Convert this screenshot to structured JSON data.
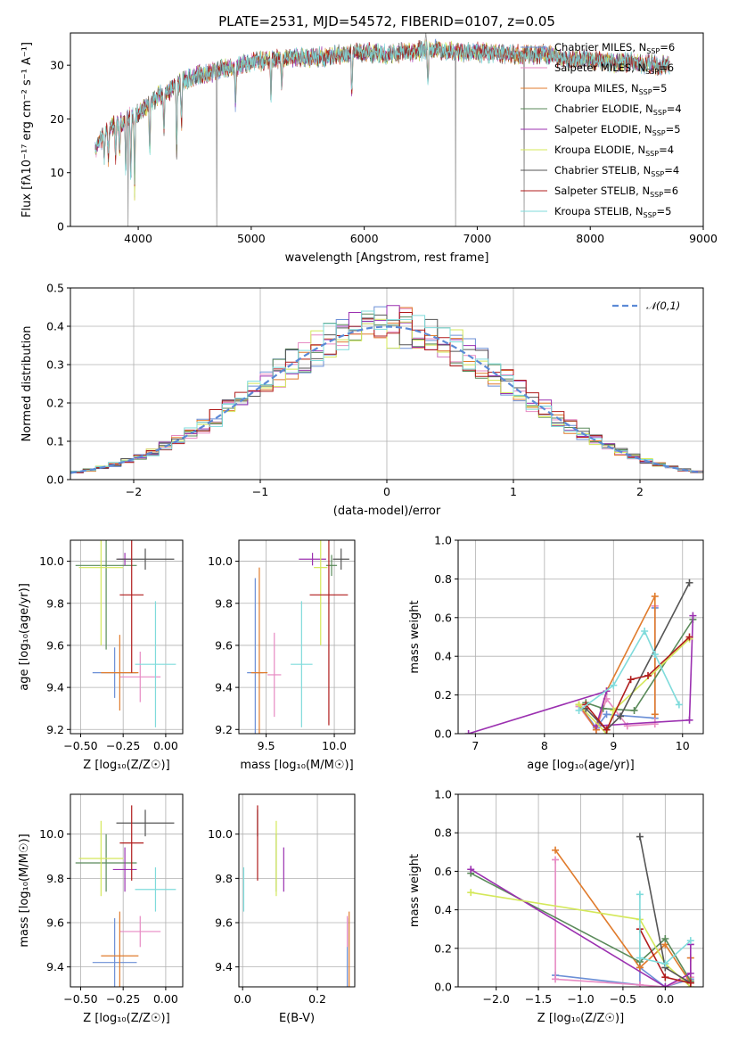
{
  "figure_title": "PLATE=2531, MJD=54572, FIBERID=0107, z=0.05",
  "models": [
    {
      "name": "Chabrier MILES",
      "nssp": "6",
      "color": "#6b8fd6"
    },
    {
      "name": "Salpeter MILES",
      "nssp": "6",
      "color": "#e78ac3"
    },
    {
      "name": "Kroupa MILES",
      "nssp": "5",
      "color": "#e07b2c"
    },
    {
      "name": "Chabrier ELODIE",
      "nssp": "4",
      "color": "#5a8a5a"
    },
    {
      "name": "Salpeter ELODIE",
      "nssp": "5",
      "color": "#9b30b0"
    },
    {
      "name": "Kroupa ELODIE",
      "nssp": "4",
      "color": "#d4e85a"
    },
    {
      "name": "Chabrier STELIB",
      "nssp": "4",
      "color": "#555555"
    },
    {
      "name": "Salpeter STELIB",
      "nssp": "6",
      "color": "#b01c1c"
    },
    {
      "name": "Kroupa STELIB",
      "nssp": "5",
      "color": "#7fdbdb"
    }
  ],
  "chart_data": [
    {
      "id": "spectrum",
      "type": "line",
      "xlabel": "wavelength [Angstrom, rest frame]",
      "ylabel": "Flux [fλ10⁻¹⁷ erg cm⁻² s⁻¹ A⁻¹]",
      "xlim": [
        3400,
        9000
      ],
      "ylim": [
        0,
        36
      ],
      "xticks": [
        4000,
        5000,
        6000,
        7000,
        8000,
        9000
      ],
      "yticks": [
        0,
        10,
        20,
        30
      ],
      "legend": "upper right",
      "continuum": {
        "x": [
          3620,
          3700,
          3800,
          3900,
          4000,
          4100,
          4200,
          4300,
          4400,
          4500,
          4600,
          4800,
          5000,
          5200,
          5400,
          5600,
          5800,
          6000,
          6200,
          6400,
          6600,
          6800,
          7000,
          7200,
          7400,
          7600,
          7800,
          8000,
          8200,
          8400,
          8600,
          8700
        ],
        "y": [
          14.5,
          17,
          19,
          20,
          21,
          23,
          24.5,
          25.5,
          27,
          28,
          28.5,
          29.5,
          30.5,
          31,
          31.5,
          31.5,
          32,
          32.5,
          32,
          32.5,
          33,
          32.5,
          32.5,
          32,
          32,
          32,
          31,
          31,
          30.5,
          30.5,
          30,
          30
        ]
      },
      "absorption_lines": [
        {
          "x": 3700,
          "y": 12
        },
        {
          "x": 3735,
          "y": 13
        },
        {
          "x": 3800,
          "y": 12.5
        },
        {
          "x": 3835,
          "y": 14
        },
        {
          "x": 3890,
          "y": 10
        },
        {
          "x": 3934,
          "y": 7
        },
        {
          "x": 3968,
          "y": 7
        },
        {
          "x": 4102,
          "y": 13
        },
        {
          "x": 4227,
          "y": 17
        },
        {
          "x": 4340,
          "y": 14
        },
        {
          "x": 4383,
          "y": 18
        },
        {
          "x": 4861,
          "y": 22
        },
        {
          "x": 5175,
          "y": 23
        },
        {
          "x": 5270,
          "y": 25
        },
        {
          "x": 5890,
          "y": 25
        },
        {
          "x": 6563,
          "y": 27
        }
      ],
      "outlier_spikes": [
        {
          "x": 3905,
          "x2": 3915,
          "y": 0
        },
        {
          "x": 4690,
          "x2": 4700,
          "y": 0
        },
        {
          "x": 6805,
          "x2": 6812,
          "y": 0
        },
        {
          "x": 7410,
          "x2": 7420,
          "y": 0
        },
        {
          "x": 6530,
          "x2": 6560,
          "y": 36
        }
      ]
    },
    {
      "id": "residual-histogram",
      "type": "line",
      "xlabel": "(data-model)/error",
      "ylabel": "Normed distribution",
      "xlim": [
        -2.5,
        2.5
      ],
      "ylim": [
        0,
        0.5
      ],
      "xticks": [
        -2,
        -1,
        0,
        1,
        2
      ],
      "yticks": [
        0.0,
        0.1,
        0.2,
        0.3,
        0.4,
        0.5
      ],
      "legend": "upper right",
      "reference": {
        "name": "𝒩(0,1)",
        "mean": 0,
        "sigma": 1
      },
      "bin_width": 0.1
    },
    {
      "id": "age-vs-Z",
      "type": "scatter",
      "xlabel": "Z [log₁₀(Z/Z☉)]",
      "ylabel": "age  [log₁₀(age/yr)]",
      "xlim": [
        -0.56,
        0.1
      ],
      "ylim": [
        9.18,
        10.1
      ],
      "xticks": [
        -0.5,
        -0.25,
        0.0
      ],
      "yticks": [
        9.2,
        9.4,
        9.6,
        9.8,
        10.0
      ],
      "points": [
        {
          "model": 0,
          "x": -0.3,
          "xerr": 0.13,
          "y": 9.47,
          "yerr": 0.12
        },
        {
          "model": 1,
          "x": -0.15,
          "xerr": 0.12,
          "y": 9.45,
          "yerr": 0.12
        },
        {
          "model": 2,
          "x": -0.27,
          "xerr": 0.11,
          "y": 9.47,
          "yerr": 0.18
        },
        {
          "model": 3,
          "x": -0.35,
          "xerr": 0.18,
          "y": 9.98,
          "yerr": 0.4
        },
        {
          "model": 4,
          "x": -0.24,
          "xerr": 0.04,
          "y": 10.01,
          "yerr": 0.03
        },
        {
          "model": 5,
          "x": -0.38,
          "xerr": 0.13,
          "y": 9.97,
          "yerr": 0.37
        },
        {
          "model": 6,
          "x": -0.12,
          "xerr": 0.17,
          "y": 10.01,
          "yerr": 0.05
        },
        {
          "model": 7,
          "x": -0.2,
          "xerr": 0.07,
          "y": 9.84,
          "yerr": 0.37
        },
        {
          "model": 8,
          "x": -0.06,
          "xerr": 0.12,
          "y": 9.51,
          "yerr": 0.3
        }
      ]
    },
    {
      "id": "age-vs-mass",
      "type": "scatter",
      "xlabel": "mass [log₁₀(M/M☉)]",
      "ylabel": "",
      "xlim": [
        9.3,
        10.15
      ],
      "ylim": [
        9.18,
        10.1
      ],
      "xticks": [
        9.5,
        10.0
      ],
      "yticks": [
        9.2,
        9.4,
        9.6,
        9.8,
        10.0
      ],
      "points": [
        {
          "model": 0,
          "x": 9.42,
          "xerr": 0.06,
          "y": 9.47,
          "yerr": 0.45
        },
        {
          "model": 1,
          "x": 9.56,
          "xerr": 0.05,
          "y": 9.46,
          "yerr": 0.2
        },
        {
          "model": 2,
          "x": 9.45,
          "xerr": 0.06,
          "y": 9.47,
          "yerr": 0.5
        },
        {
          "model": 3,
          "x": 9.98,
          "xerr": 0.04,
          "y": 9.98,
          "yerr": 0.05
        },
        {
          "model": 4,
          "x": 9.84,
          "xerr": 0.1,
          "y": 10.01,
          "yerr": 0.03
        },
        {
          "model": 5,
          "x": 9.9,
          "xerr": 0.05,
          "y": 9.97,
          "yerr": 0.37
        },
        {
          "model": 6,
          "x": 10.05,
          "xerr": 0.06,
          "y": 10.01,
          "yerr": 0.05
        },
        {
          "model": 7,
          "x": 9.96,
          "xerr": 0.14,
          "y": 9.84,
          "yerr": 0.62
        },
        {
          "model": 8,
          "x": 9.76,
          "xerr": 0.08,
          "y": 9.51,
          "yerr": 0.3
        }
      ]
    },
    {
      "id": "massweight-vs-age",
      "type": "line",
      "xlabel": "age  [log₁₀(age/yr)]",
      "ylabel": "mass weight",
      "xlim": [
        6.75,
        10.3
      ],
      "ylim": [
        0,
        1.0
      ],
      "xticks": [
        7,
        8,
        9,
        10
      ],
      "yticks": [
        0.0,
        0.2,
        0.4,
        0.6,
        0.8,
        1.0
      ],
      "series": [
        {
          "model": 0,
          "x": [
            8.5,
            8.75,
            8.9,
            9.6,
            9.6
          ],
          "y": [
            0.15,
            0.03,
            0.1,
            0.08,
            0.65
          ]
        },
        {
          "model": 1,
          "x": [
            8.5,
            8.75,
            8.9,
            9.2,
            9.6,
            9.6
          ],
          "y": [
            0.14,
            0.02,
            0.18,
            0.04,
            0.05,
            0.66
          ]
        },
        {
          "model": 2,
          "x": [
            8.5,
            8.75,
            8.9,
            9.6,
            9.6
          ],
          "y": [
            0.15,
            0.02,
            0.22,
            0.71,
            0.1
          ]
        },
        {
          "model": 3,
          "x": [
            8.6,
            8.85,
            9.3,
            10.15
          ],
          "y": [
            0.16,
            0.13,
            0.12,
            0.59
          ]
        },
        {
          "model": 4,
          "x": [
            6.9,
            8.9,
            8.75,
            10.1,
            10.15
          ],
          "y": [
            0.0,
            0.22,
            0.04,
            0.07,
            0.61
          ]
        },
        {
          "model": 5,
          "x": [
            8.5,
            8.9,
            9.0,
            10.1
          ],
          "y": [
            0.15,
            0.0,
            0.12,
            0.49
          ]
        },
        {
          "model": 6,
          "x": [
            8.6,
            8.9,
            9.1,
            10.1
          ],
          "y": [
            0.13,
            0.02,
            0.09,
            0.78
          ]
        },
        {
          "model": 7,
          "x": [
            8.6,
            8.9,
            9.25,
            9.5,
            10.1
          ],
          "y": [
            0.15,
            0.02,
            0.28,
            0.3,
            0.5
          ]
        },
        {
          "model": 8,
          "x": [
            8.5,
            9.0,
            9.45,
            9.6,
            9.95
          ],
          "y": [
            0.12,
            0.25,
            0.53,
            0.41,
            0.15
          ]
        }
      ]
    },
    {
      "id": "mass-vs-Z",
      "type": "scatter",
      "xlabel": "Z [log₁₀(Z/Z☉)]",
      "ylabel": "mass [log₁₀(M/M☉)]",
      "xlim": [
        -0.56,
        0.1
      ],
      "ylim": [
        9.31,
        10.18
      ],
      "xticks": [
        -0.5,
        -0.25,
        0.0
      ],
      "yticks": [
        9.4,
        9.6,
        9.8,
        10.0
      ],
      "points": [
        {
          "model": 0,
          "x": -0.3,
          "xerr": 0.13,
          "y": 9.42,
          "yerr": 0.2
        },
        {
          "model": 1,
          "x": -0.15,
          "xerr": 0.12,
          "y": 9.56,
          "yerr": 0.07
        },
        {
          "model": 2,
          "x": -0.27,
          "xerr": 0.11,
          "y": 9.45,
          "yerr": 0.2
        },
        {
          "model": 3,
          "x": -0.35,
          "xerr": 0.18,
          "y": 9.87,
          "yerr": 0.13
        },
        {
          "model": 4,
          "x": -0.24,
          "xerr": 0.07,
          "y": 9.84,
          "yerr": 0.1
        },
        {
          "model": 5,
          "x": -0.38,
          "xerr": 0.13,
          "y": 9.89,
          "yerr": 0.17
        },
        {
          "model": 6,
          "x": -0.12,
          "xerr": 0.17,
          "y": 10.05,
          "yerr": 0.06
        },
        {
          "model": 7,
          "x": -0.2,
          "xerr": 0.07,
          "y": 9.96,
          "yerr": 0.17
        },
        {
          "model": 8,
          "x": -0.06,
          "xerr": 0.12,
          "y": 9.75,
          "yerr": 0.1
        }
      ]
    },
    {
      "id": "mass-vs-EBV",
      "type": "scatter",
      "xlabel": "E(B-V)",
      "ylabel": "",
      "xlim": [
        -0.01,
        0.3
      ],
      "ylim": [
        9.31,
        10.18
      ],
      "xticks": [
        0.0,
        0.2
      ],
      "yticks": [
        9.4,
        9.6,
        9.8,
        10.0
      ],
      "points": [
        {
          "model": 0,
          "x": 0.28,
          "xerr": 0,
          "y": 9.42,
          "yerr": 0.2
        },
        {
          "model": 1,
          "x": 0.28,
          "xerr": 0,
          "y": 9.56,
          "yerr": 0.07
        },
        {
          "model": 2,
          "x": 0.285,
          "xerr": 0,
          "y": 9.45,
          "yerr": 0.2
        },
        {
          "model": 3,
          "x": 0.09,
          "xerr": 0,
          "y": 9.87,
          "yerr": 0.13
        },
        {
          "model": 4,
          "x": 0.11,
          "xerr": 0,
          "y": 9.84,
          "yerr": 0.1
        },
        {
          "model": 5,
          "x": 0.09,
          "xerr": 0,
          "y": 9.89,
          "yerr": 0.17
        },
        {
          "model": 6,
          "x": 0.04,
          "xerr": 0,
          "y": 10.05,
          "yerr": 0.06
        },
        {
          "model": 7,
          "x": 0.04,
          "xerr": 0,
          "y": 9.96,
          "yerr": 0.17
        },
        {
          "model": 8,
          "x": 0.003,
          "xerr": 0,
          "y": 9.75,
          "yerr": 0.1
        }
      ]
    },
    {
      "id": "massweight-vs-Z",
      "type": "line",
      "xlabel": "Z [log₁₀(Z/Z☉)]",
      "ylabel": "mass weight",
      "xlim": [
        -2.45,
        0.45
      ],
      "ylim": [
        0,
        1.0
      ],
      "xticks": [
        -2.0,
        -1.5,
        -1.0,
        -0.5,
        0.0
      ],
      "yticks": [
        0.0,
        0.2,
        0.4,
        0.6,
        0.8,
        1.0
      ],
      "series": [
        {
          "model": 0,
          "x": [
            -1.3,
            -0.3,
            -0.3,
            0.0,
            0.3
          ],
          "y": [
            0.06,
            0.01,
            0.1,
            0.0,
            0.04
          ]
        },
        {
          "model": 1,
          "x": [
            -1.3,
            -1.3,
            -0.3,
            0.0,
            0.3
          ],
          "y": [
            0.66,
            0.04,
            0.01,
            0.0,
            0.05
          ]
        },
        {
          "model": 2,
          "x": [
            -1.3,
            -0.3,
            0.0,
            0.3,
            0.3
          ],
          "y": [
            0.71,
            0.1,
            0.22,
            0.02,
            0.15
          ]
        },
        {
          "model": 3,
          "x": [
            -2.3,
            -0.3,
            0.0,
            0.3
          ],
          "y": [
            0.59,
            0.13,
            0.25,
            0.03
          ]
        },
        {
          "model": 4,
          "x": [
            -2.3,
            0.0,
            0.3,
            0.3
          ],
          "y": [
            0.61,
            0.0,
            0.07,
            0.22
          ]
        },
        {
          "model": 5,
          "x": [
            -2.3,
            -0.3,
            0.0,
            0.3
          ],
          "y": [
            0.49,
            0.35,
            0.12,
            0.0
          ]
        },
        {
          "model": 6,
          "x": [
            -0.3,
            0.0,
            0.3
          ],
          "y": [
            0.78,
            0.1,
            0.02
          ]
        },
        {
          "model": 7,
          "x": [
            -0.3,
            0.0,
            0.3
          ],
          "y": [
            0.3,
            0.05,
            0.02
          ]
        },
        {
          "model": 8,
          "x": [
            -0.3,
            -0.3,
            0.0,
            0.3
          ],
          "y": [
            0.48,
            0.15,
            0.12,
            0.24
          ]
        }
      ]
    }
  ]
}
